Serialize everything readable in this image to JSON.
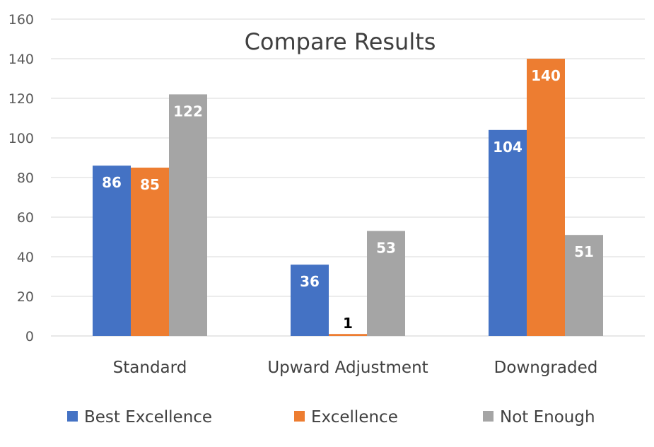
{
  "chart_data": {
    "type": "bar",
    "title": "Compare Results",
    "xlabel": "",
    "ylabel": "",
    "categories": [
      "Standard",
      "Upward Adjustment",
      "Downgraded"
    ],
    "series": [
      {
        "name": "Best Excellence",
        "values": [
          86,
          36,
          104
        ],
        "color": "#4472C4"
      },
      {
        "name": "Excellence",
        "values": [
          85,
          1,
          140
        ],
        "color": "#ED7D31"
      },
      {
        "name": "Not Enough",
        "values": [
          122,
          53,
          51
        ],
        "color": "#A5A5A5"
      }
    ],
    "ylim": [
      0,
      160
    ],
    "yticks": [
      0,
      20,
      40,
      60,
      80,
      100,
      120,
      140,
      160
    ],
    "grid": true,
    "legend": "bottom",
    "data_labels": true
  }
}
